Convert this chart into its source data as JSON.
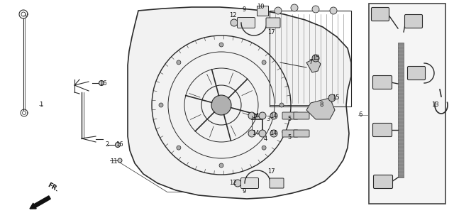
{
  "bg_color": "#ffffff",
  "lc": "#2a2a2a",
  "fig_w": 6.4,
  "fig_h": 3.0,
  "dpi": 100,
  "labels": [
    [
      "1",
      55,
      148
    ],
    [
      "2",
      148,
      203
    ],
    [
      "3",
      375,
      168
    ],
    [
      "4",
      372,
      195
    ],
    [
      "5",
      405,
      168
    ],
    [
      "5",
      405,
      193
    ],
    [
      "6",
      505,
      162
    ],
    [
      "7",
      435,
      88
    ],
    [
      "8",
      450,
      148
    ],
    [
      "9",
      342,
      14
    ],
    [
      "9",
      342,
      270
    ],
    [
      "10",
      362,
      10
    ],
    [
      "11",
      155,
      228
    ],
    [
      "12",
      323,
      22
    ],
    [
      "12",
      323,
      258
    ],
    [
      "13",
      608,
      148
    ],
    [
      "14",
      355,
      163
    ],
    [
      "14",
      380,
      163
    ],
    [
      "14",
      355,
      188
    ],
    [
      "14",
      380,
      188
    ],
    [
      "15",
      440,
      82
    ],
    [
      "15",
      468,
      138
    ],
    [
      "16",
      140,
      118
    ],
    [
      "16",
      163,
      203
    ],
    [
      "17",
      377,
      45
    ],
    [
      "17",
      377,
      242
    ]
  ]
}
